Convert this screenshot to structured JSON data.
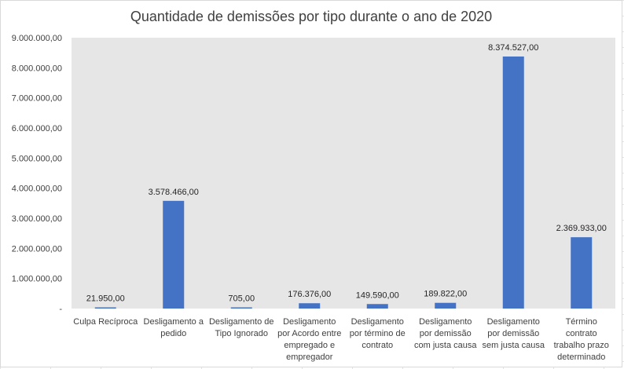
{
  "chart_data": {
    "type": "bar",
    "title": "Quantidade de demissões por tipo durante o ano de 2020",
    "xlabel": "",
    "ylabel": "",
    "ylim": [
      0,
      9000000
    ],
    "grid": false,
    "legend": "none",
    "bar_color": "#4472C4",
    "plot_background": "#E7E6E6",
    "y_ticks": [
      0,
      1000000,
      2000000,
      3000000,
      4000000,
      5000000,
      6000000,
      7000000,
      8000000,
      9000000
    ],
    "y_tick_labels": [
      "-",
      "1.000.000,00",
      "2.000.000,00",
      "3.000.000,00",
      "4.000.000,00",
      "5.000.000,00",
      "6.000.000,00",
      "7.000.000,00",
      "8.000.000,00",
      "9.000.000,00"
    ],
    "categories": [
      [
        "Culpa Recíproca"
      ],
      [
        "Desligamento a",
        "pedido"
      ],
      [
        "Desligamento de",
        "Tipo Ignorado"
      ],
      [
        "Desligamento",
        "por Acordo entre",
        "empregado e",
        "empregador"
      ],
      [
        "Desligamento",
        "por término de",
        "contrato"
      ],
      [
        "Desligamento",
        "por demissão",
        "com justa causa"
      ],
      [
        "Desligamento",
        "por demissão",
        "sem justa causa"
      ],
      [
        "Término",
        "contrato",
        "trabalho prazo",
        "determinado"
      ]
    ],
    "values": [
      21950,
      3578466,
      705,
      176376,
      149590,
      189822,
      8374527,
      2369933
    ],
    "data_labels": [
      "21.950,00",
      "3.578.466,00",
      "705,00",
      "176.376,00",
      "149.590,00",
      "189.822,00",
      "8.374.527,00",
      "2.369.933,00"
    ]
  }
}
